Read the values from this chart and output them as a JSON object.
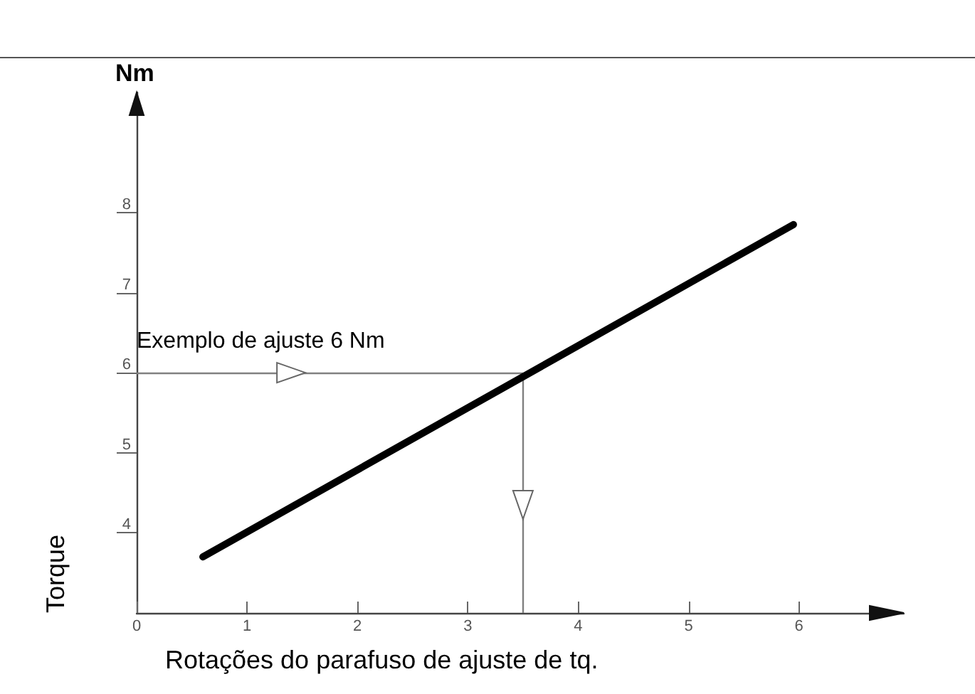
{
  "chart_data": {
    "type": "line",
    "xlabel": "Rotações do parafuso de ajuste de tq.",
    "ylabel": "Torque",
    "annotations": [
      "Nm"
    ],
    "x": [
      0.6,
      5.95
    ],
    "series": [
      {
        "color": "#000000",
        "values": [
          3.7,
          7.85
        ]
      }
    ],
    "xlim": [
      0,
      6.95
    ],
    "xticks": [
      0,
      1,
      2,
      3,
      4,
      5,
      6
    ],
    "ylim": [
      3,
      9.5
    ],
    "yticks": [
      4,
      5,
      6,
      7,
      8
    ],
    "ref_lines": [
      {
        "axis": "y",
        "value": 6,
        "label": "Exemplo de ajuste 6 Nm",
        "color": "#808080"
      },
      {
        "axis": "x",
        "value": 3.5,
        "label": null,
        "color": "#808080"
      }
    ],
    "grid": false,
    "marker": "none",
    "line_style": "solid"
  }
}
